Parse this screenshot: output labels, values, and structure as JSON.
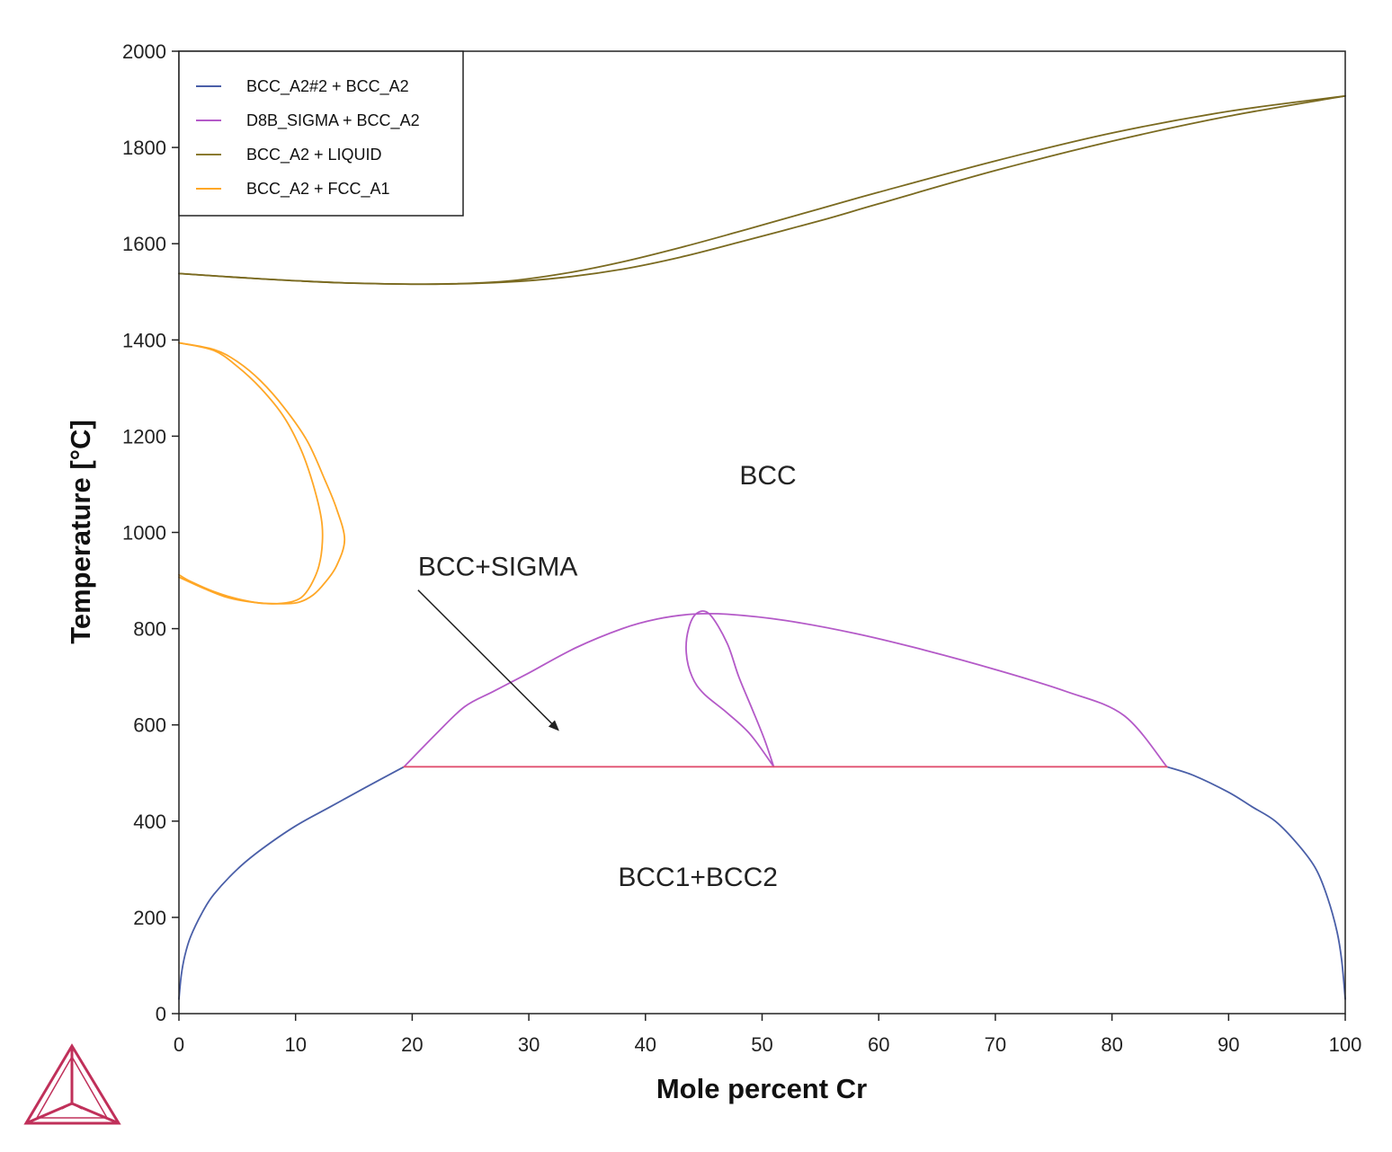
{
  "chart_data": {
    "type": "line",
    "xlabel": "Mole percent Cr",
    "ylabel": "Temperature [°C]",
    "xlim": [
      0,
      100
    ],
    "ylim": [
      0,
      2000
    ],
    "x_ticks": [
      "0",
      "10",
      "20",
      "30",
      "40",
      "50",
      "60",
      "70",
      "80",
      "90",
      "100"
    ],
    "y_ticks": [
      "0",
      "200",
      "400",
      "600",
      "800",
      "1000",
      "1200",
      "1400",
      "1600",
      "1800",
      "2000"
    ],
    "grid": false,
    "legend": {
      "placement": "top-left",
      "entries": [
        {
          "name": "BCC_A2#2 + BCC_A2",
          "color": "#4a5fa8"
        },
        {
          "name": "D8B_SIGMA + BCC_A2",
          "color": "#b45ac8"
        },
        {
          "name": "BCC_A2 + LIQUID",
          "color": "#8a7a30"
        },
        {
          "name": "BCC_A2 + FCC_A1",
          "color": "#ffa726"
        }
      ]
    },
    "series": [
      {
        "name": "BCC_A2#2 + BCC_A2",
        "color": "#4a5fa8",
        "segments": [
          [
            [
              0,
              30
            ],
            [
              0.2,
              80
            ],
            [
              0.5,
              120
            ],
            [
              1,
              160
            ],
            [
              2,
              210
            ],
            [
              3,
              248
            ],
            [
              5,
              300
            ],
            [
              7,
              340
            ],
            [
              10,
              390
            ],
            [
              13,
              430
            ],
            [
              16,
              470
            ],
            [
              19.3,
              513
            ]
          ],
          [
            [
              84.7,
              513
            ],
            [
              87,
              495
            ],
            [
              90,
              460
            ],
            [
              92,
              430
            ],
            [
              94,
              400
            ],
            [
              96,
              350
            ],
            [
              97.5,
              300
            ],
            [
              98.5,
              240
            ],
            [
              99.3,
              170
            ],
            [
              99.7,
              110
            ],
            [
              100,
              30
            ]
          ]
        ]
      },
      {
        "name": "D8B_SIGMA + BCC_A2",
        "color": "#b45ac8",
        "segments": [
          [
            [
              19.3,
              513
            ],
            [
              22,
              580
            ],
            [
              24.5,
              638
            ],
            [
              27,
              670
            ],
            [
              30,
              708
            ],
            [
              34,
              760
            ],
            [
              38,
              800
            ],
            [
              41,
              820
            ],
            [
              44,
              830
            ],
            [
              47,
              830
            ],
            [
              52,
              817
            ],
            [
              58,
              790
            ],
            [
              64,
              755
            ],
            [
              70,
              715
            ],
            [
              76,
              670
            ],
            [
              81,
              620
            ],
            [
              84.7,
              513
            ]
          ],
          [
            [
              51,
              513
            ],
            [
              50.2,
              570
            ],
            [
              49.2,
              630
            ],
            [
              48,
              700
            ],
            [
              47,
              770
            ],
            [
              45.5,
              830
            ],
            [
              44.4,
              832
            ],
            [
              43.7,
              800
            ],
            [
              43.5,
              750
            ],
            [
              44,
              700
            ],
            [
              45,
              665
            ],
            [
              47,
              625
            ],
            [
              49,
              580
            ],
            [
              51,
              513
            ]
          ]
        ]
      },
      {
        "name": "BCC_A2 + LIQUID",
        "color": "#7a6a20",
        "segments": [
          [
            [
              0,
              1538
            ],
            [
              5,
              1530
            ],
            [
              10,
              1523
            ],
            [
              15,
              1518
            ],
            [
              22,
              1516
            ],
            [
              28,
              1520
            ],
            [
              33,
              1530
            ],
            [
              38,
              1547
            ],
            [
              43,
              1572
            ],
            [
              48,
              1603
            ],
            [
              55,
              1648
            ],
            [
              60,
              1683
            ],
            [
              70,
              1752
            ],
            [
              80,
              1813
            ],
            [
              90,
              1865
            ],
            [
              100,
              1907
            ]
          ],
          [
            [
              0,
              1538
            ],
            [
              5,
              1530
            ],
            [
              10,
              1523
            ],
            [
              15,
              1518
            ],
            [
              22,
              1516
            ],
            [
              28,
              1522
            ],
            [
              33,
              1538
            ],
            [
              38,
              1562
            ],
            [
              43,
              1592
            ],
            [
              48,
              1625
            ],
            [
              55,
              1673
            ],
            [
              60,
              1707
            ],
            [
              70,
              1772
            ],
            [
              80,
              1830
            ],
            [
              90,
              1875
            ],
            [
              100,
              1907
            ]
          ]
        ]
      },
      {
        "name": "BCC_A2 + FCC_A1",
        "color": "#ffa726",
        "segments": [
          [
            [
              0,
              1394
            ],
            [
              3,
              1380
            ],
            [
              5,
              1355
            ],
            [
              7,
              1315
            ],
            [
              9,
              1260
            ],
            [
              11,
              1190
            ],
            [
              12.5,
              1110
            ],
            [
              13.5,
              1050
            ],
            [
              14.2,
              985
            ],
            [
              13.5,
              930
            ],
            [
              12.5,
              895
            ],
            [
              11.5,
              870
            ],
            [
              10.3,
              855
            ],
            [
              9,
              852
            ],
            [
              7,
              853
            ],
            [
              5,
              862
            ],
            [
              3,
              877
            ],
            [
              1,
              898
            ],
            [
              0,
              912
            ]
          ],
          [
            [
              0,
              1394
            ],
            [
              3,
              1378
            ],
            [
              5,
              1345
            ],
            [
              7,
              1300
            ],
            [
              9,
              1240
            ],
            [
              10.5,
              1170
            ],
            [
              11.5,
              1100
            ],
            [
              12.2,
              1030
            ],
            [
              12.3,
              980
            ],
            [
              12,
              930
            ],
            [
              11.3,
              890
            ],
            [
              10.5,
              865
            ],
            [
              9.5,
              855
            ],
            [
              8,
              852
            ],
            [
              6,
              856
            ],
            [
              4,
              866
            ],
            [
              2,
              885
            ],
            [
              0,
              907
            ]
          ]
        ]
      },
      {
        "name": "tie-line",
        "color": "#e05070",
        "segments": [
          [
            [
              19.3,
              513
            ],
            [
              84.7,
              513
            ]
          ]
        ]
      }
    ],
    "annotations": [
      {
        "text": "BCC",
        "x": 50.5,
        "y": 1100
      },
      {
        "text": "BCC+SIGMA",
        "x": 20.5,
        "y": 910,
        "arrow_to": [
          32.5,
          590
        ]
      },
      {
        "text": "BCC1+BCC2",
        "x": 44.5,
        "y": 265
      }
    ]
  }
}
